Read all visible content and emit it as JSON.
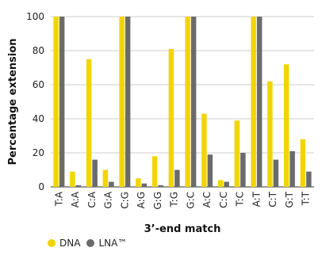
{
  "chart_data": {
    "type": "bar",
    "categories": [
      "T:A",
      "A:A",
      "C:A",
      "G:A",
      "C:G",
      "A:G",
      "G:G",
      "T:G",
      "G:C",
      "A:C",
      "C:C",
      "T:C",
      "A:T",
      "C:T",
      "G:T",
      "T:T"
    ],
    "series": [
      {
        "name": "DNA",
        "color": "#f2d500",
        "values": [
          100,
          9,
          75,
          10,
          100,
          5,
          18,
          81,
          100,
          43,
          4,
          39,
          100,
          62,
          72,
          28
        ]
      },
      {
        "name": "LNA™",
        "color": "#6b6b6b",
        "values": [
          100,
          1,
          16,
          3,
          100,
          2,
          1,
          10,
          100,
          19,
          3,
          20,
          100,
          16,
          21,
          9
        ]
      }
    ],
    "xlabel": "3’-end match",
    "ylabel": "Percentage extension",
    "ylim": [
      0,
      100
    ],
    "yticks": [
      0,
      20,
      40,
      60,
      80,
      100
    ],
    "grid": "horizontal",
    "legend": "bottom-left"
  }
}
